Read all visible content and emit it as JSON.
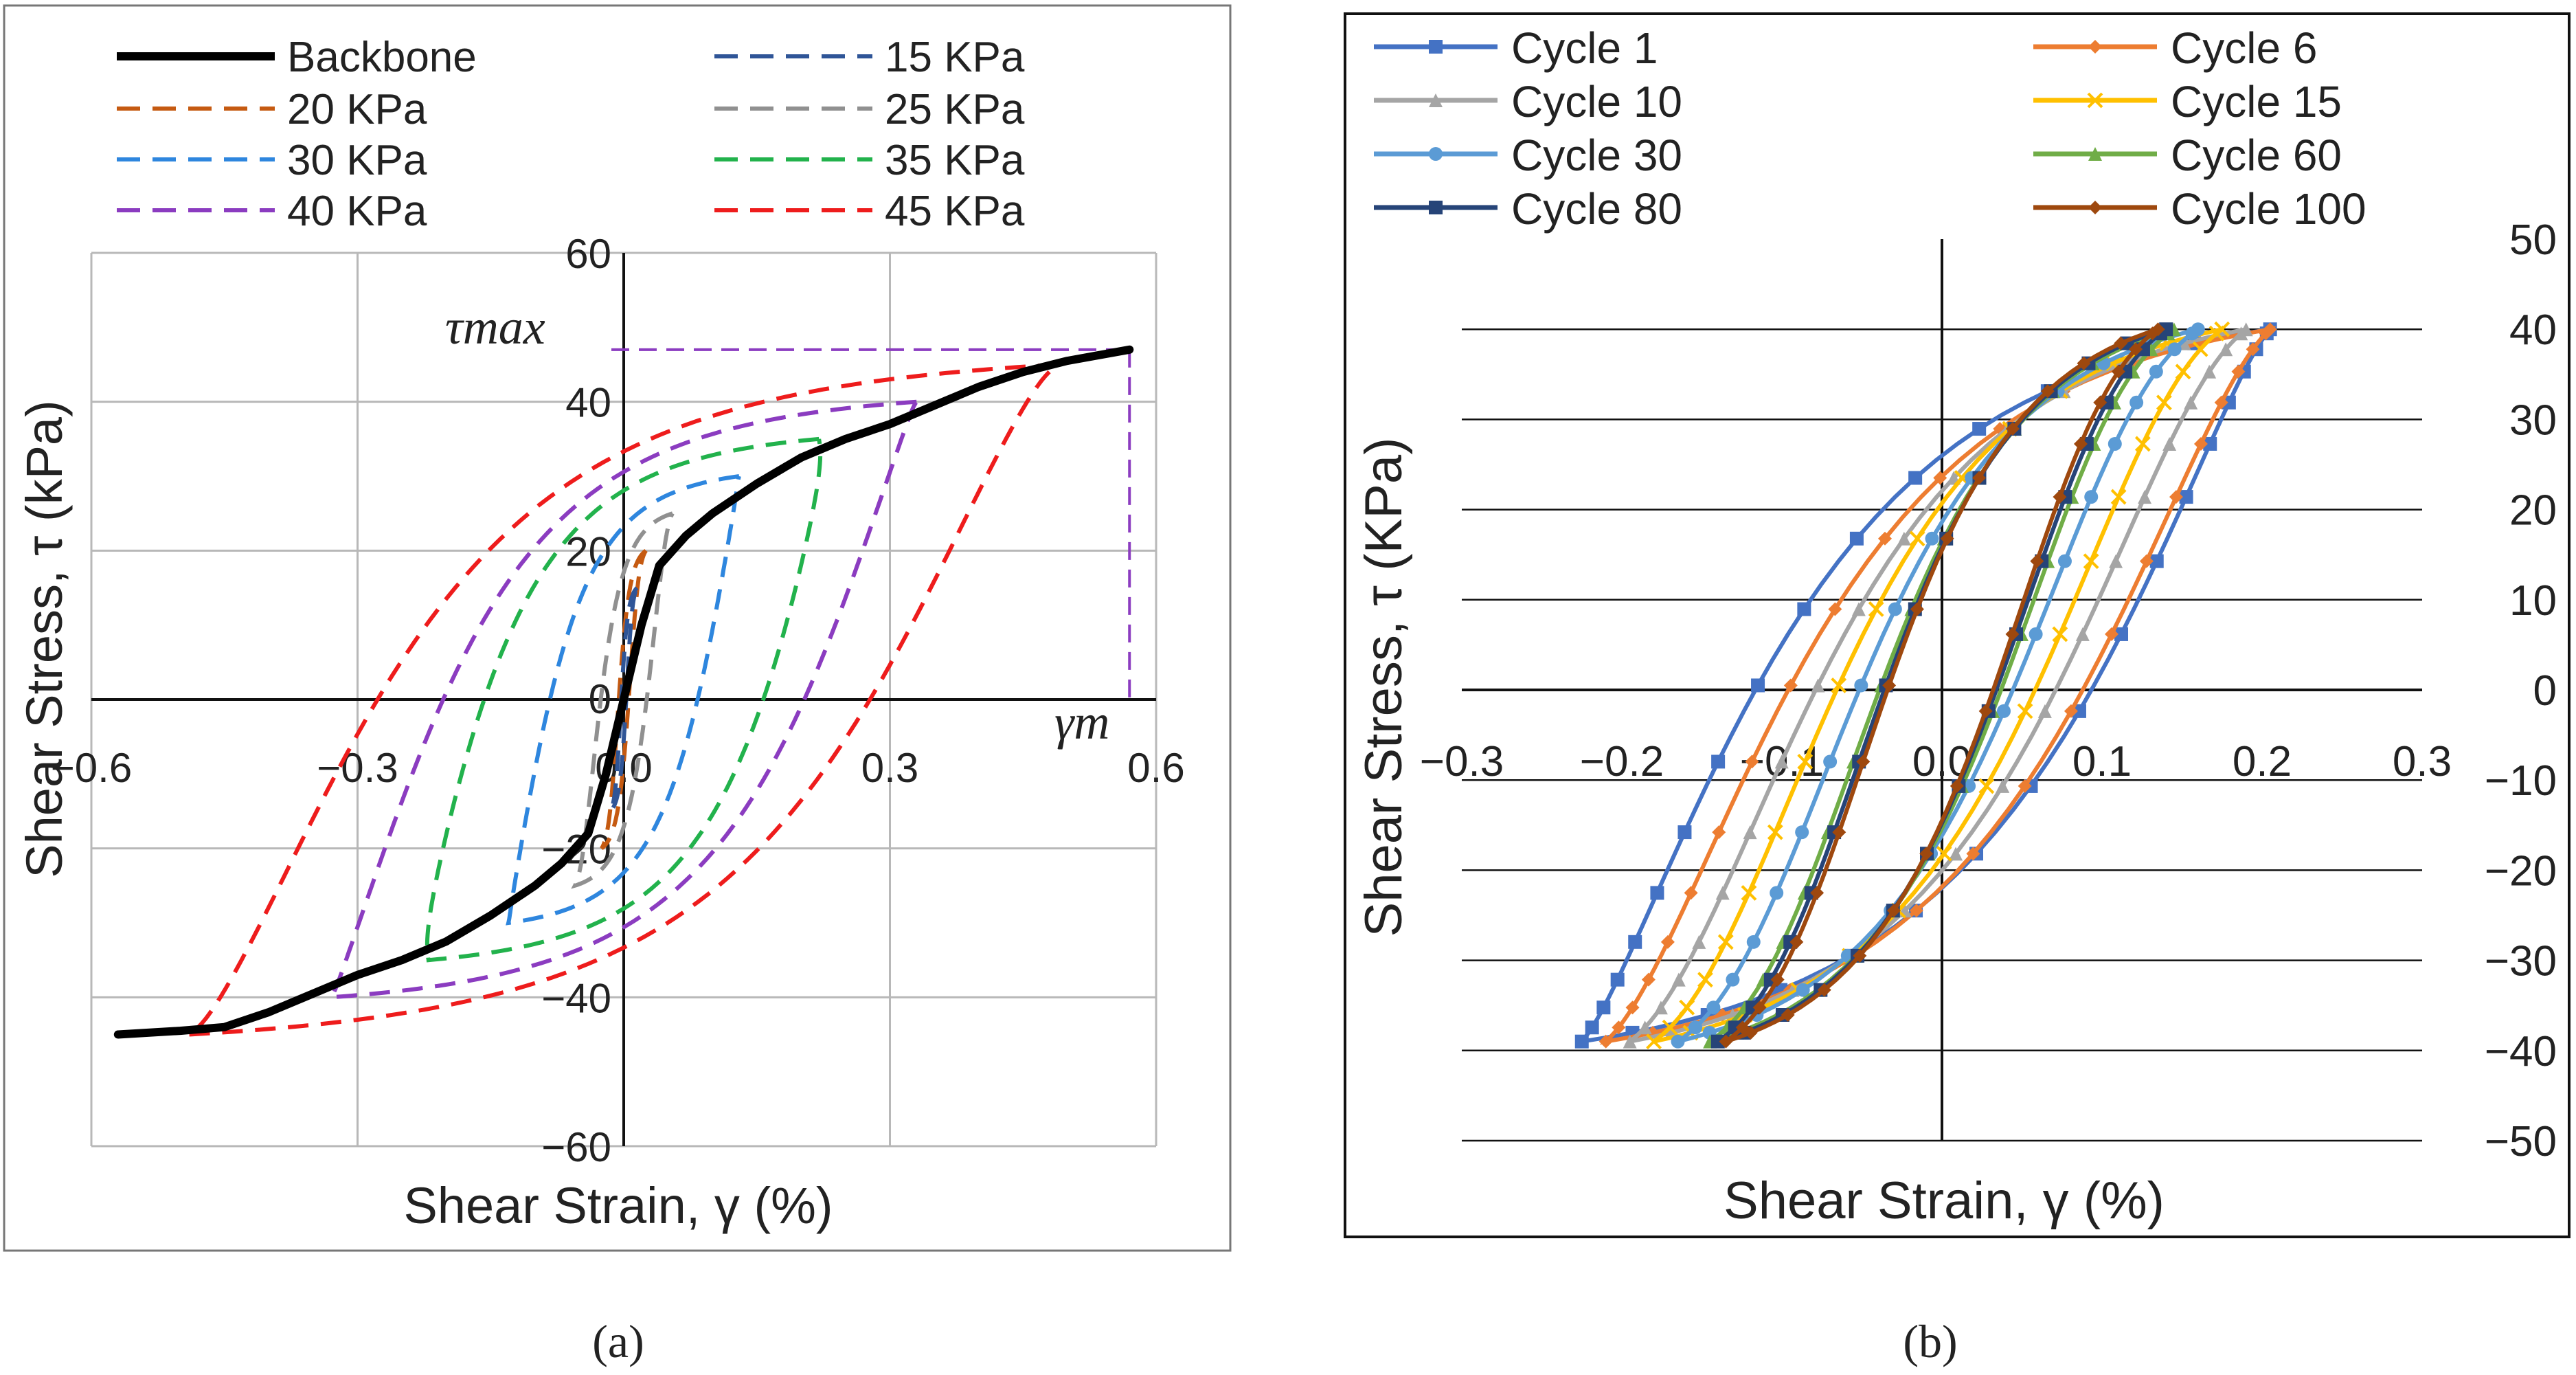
{
  "figure": {
    "panel_labels": [
      "(a)",
      "(b)"
    ]
  },
  "chart_data": [
    {
      "type": "line",
      "panel": "a",
      "title": "",
      "xlabel": "Shear Strain, γ (%)",
      "ylabel": "Shear Stress, τ (kPa)",
      "xlim": [
        -0.6,
        0.6
      ],
      "ylim": [
        -60,
        60
      ],
      "xticks": [
        -0.6,
        -0.3,
        0.0,
        0.3,
        0.6
      ],
      "xtick_labels": [
        "−0.6",
        "−0.3",
        "0.0",
        "0.3",
        "0.6"
      ],
      "yticks": [
        -60,
        -40,
        -20,
        0,
        20,
        40,
        60
      ],
      "ytick_labels": [
        "−60",
        "−40",
        "−20",
        "0",
        "20",
        "40",
        "60"
      ],
      "grid": true,
      "legend_position": "top",
      "annotations": {
        "tau_max": "τmax",
        "gamma_m": "γm"
      },
      "reference_lines": {
        "tau_max_value": 47,
        "gamma_m_value": 0.57,
        "color": "#8b3cc0"
      },
      "backbone": {
        "name": "Backbone",
        "color": "#000000",
        "style": "solid",
        "x": [
          -0.57,
          -0.5,
          -0.45,
          -0.4,
          -0.36,
          -0.3,
          -0.25,
          -0.2,
          -0.15,
          -0.1,
          -0.07,
          -0.04,
          -0.03,
          -0.02,
          -0.01,
          0.0,
          0.01,
          0.02,
          0.03,
          0.04,
          0.07,
          0.1,
          0.15,
          0.2,
          0.25,
          0.3,
          0.36,
          0.4,
          0.45,
          0.5,
          0.57
        ],
        "y": [
          -45,
          -44.5,
          -44,
          -42,
          -40,
          -37,
          -35,
          -32.5,
          -29,
          -25,
          -22,
          -18,
          -14,
          -10,
          -5,
          0,
          5,
          10,
          14,
          18,
          22,
          25,
          29,
          32.5,
          35,
          37,
          40,
          42,
          44,
          45.5,
          47
        ]
      },
      "loops": [
        {
          "name": "15 KPa",
          "color": "#2f5597",
          "amp": 0.015,
          "tau": 15,
          "w": 0.003
        },
        {
          "name": "20 KPa",
          "color": "#c55a11",
          "amp": 0.025,
          "tau": 20,
          "w": 0.006
        },
        {
          "name": "25 KPa",
          "color": "#909090",
          "amp": 0.055,
          "tau": 25,
          "w": 0.028
        },
        {
          "name": "30 KPa",
          "color": "#2e86de",
          "amp": 0.13,
          "tau": 30,
          "w": 0.09
        },
        {
          "name": "35 KPa",
          "color": "#22b24c",
          "amp": 0.22,
          "tau": 35,
          "w": 0.17
        },
        {
          "name": "40 KPa",
          "color": "#8b3cc0",
          "amp": 0.33,
          "tau": 40,
          "w": 0.22
        },
        {
          "name": "45 KPa",
          "color": "#ee1c1c",
          "amp": 0.49,
          "tau": 45,
          "w": 0.3
        }
      ],
      "legend": [
        "Backbone",
        "15 KPa",
        "20 KPa",
        "25 KPa",
        "30 KPa",
        "35 KPa",
        "40 KPa",
        "45 KPa"
      ]
    },
    {
      "type": "line",
      "panel": "b",
      "title": "",
      "xlabel": "Shear Strain, γ  (%)",
      "ylabel": "Shear Stress, τ (KPa)",
      "xlim": [
        -0.3,
        0.3
      ],
      "ylim": [
        -50,
        50
      ],
      "xticks": [
        -0.3,
        -0.2,
        -0.1,
        0.0,
        0.1,
        0.2,
        0.3
      ],
      "xtick_labels": [
        "−0.3",
        "−0.2",
        "−0.1",
        "0.0",
        "0.1",
        "0.2",
        "0.3"
      ],
      "yticks": [
        50,
        40,
        30,
        20,
        10,
        0,
        -10,
        -20,
        -30,
        -40,
        -50
      ],
      "ytick_labels": [
        "50",
        "40",
        "30",
        "20",
        "10",
        "0",
        "−10",
        "−20",
        "−30",
        "−40",
        "−50"
      ],
      "grid": true,
      "legend_position": "top",
      "series": [
        {
          "name": "Cycle 1",
          "color": "#4472c4",
          "marker": "square",
          "amp_pos": 0.205,
          "amp_neg": 0.225,
          "w": 0.105
        },
        {
          "name": "Cycle 6",
          "color": "#ed7d31",
          "marker": "diamond",
          "amp_pos": 0.205,
          "amp_neg": 0.21,
          "w": 0.092
        },
        {
          "name": "Cycle 10",
          "color": "#a5a5a5",
          "marker": "triangle",
          "amp_pos": 0.19,
          "amp_neg": 0.195,
          "w": 0.075
        },
        {
          "name": "Cycle 15",
          "color": "#ffc000",
          "marker": "cross",
          "amp_pos": 0.175,
          "amp_neg": 0.18,
          "w": 0.062
        },
        {
          "name": "Cycle 30",
          "color": "#5b9bd5",
          "marker": "circle",
          "amp_pos": 0.16,
          "amp_neg": 0.165,
          "w": 0.048
        },
        {
          "name": "Cycle 60",
          "color": "#70ad47",
          "marker": "triangle",
          "amp_pos": 0.145,
          "amp_neg": 0.145,
          "w": 0.038
        },
        {
          "name": "Cycle 80",
          "color": "#264478",
          "marker": "square",
          "amp_pos": 0.14,
          "amp_neg": 0.14,
          "w": 0.035
        },
        {
          "name": "Cycle 100",
          "color": "#9e480e",
          "marker": "diamond",
          "amp_pos": 0.135,
          "amp_neg": 0.135,
          "w": 0.033
        }
      ],
      "tau_pos": 40,
      "tau_neg": -39
    }
  ]
}
